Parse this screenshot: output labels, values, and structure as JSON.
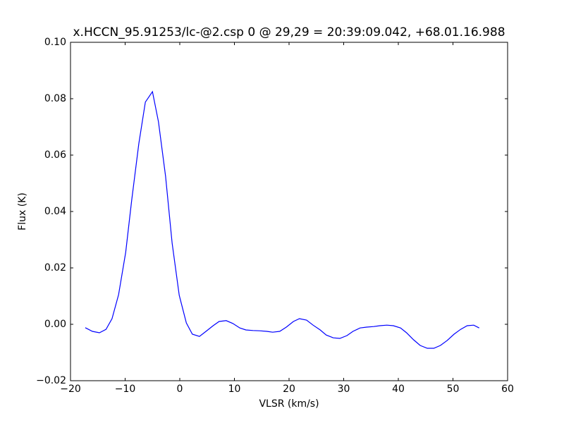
{
  "chart_data": {
    "type": "line",
    "title": "x.HCCN_95.91253/lc-@2.csp 0 @ 29,29 = 20:39:09.042, +68.01.16.988",
    "x_label": "VLSR (km/s)",
    "y_label": "Flux (K)",
    "x": [
      -17.3,
      -16.0,
      -14.7,
      -13.5,
      -12.4,
      -11.2,
      -9.9,
      -8.8,
      -7.5,
      -6.3,
      -5.0,
      -3.9,
      -2.6,
      -1.4,
      -0.1,
      1.2,
      2.3,
      3.6,
      4.8,
      6.1,
      7.2,
      8.5,
      9.7,
      11.0,
      12.1,
      13.4,
      14.6,
      15.9,
      17.0,
      18.3,
      19.5,
      20.8,
      21.9,
      23.2,
      24.4,
      25.7,
      26.8,
      28.1,
      29.3,
      30.6,
      31.7,
      33.0,
      34.2,
      35.5,
      36.6,
      37.9,
      39.1,
      40.4,
      41.5,
      42.8,
      44.0,
      45.3,
      46.5,
      47.7,
      48.9,
      50.2,
      51.4,
      52.6,
      53.8,
      54.8
    ],
    "series": [
      {
        "color": "#0000ff",
        "values": [
          -0.0012,
          -0.0025,
          -0.003,
          -0.0018,
          0.002,
          0.0105,
          0.0255,
          0.044,
          0.064,
          0.0788,
          0.0825,
          0.0718,
          0.0525,
          0.0288,
          0.0103,
          0.0005,
          -0.0035,
          -0.0043,
          -0.0025,
          -0.0005,
          0.001,
          0.0013,
          0.0003,
          -0.0013,
          -0.002,
          -0.0022,
          -0.0023,
          -0.0025,
          -0.0028,
          -0.0025,
          -0.001,
          0.001,
          0.002,
          0.0015,
          -0.0003,
          -0.002,
          -0.0038,
          -0.0048,
          -0.005,
          -0.004,
          -0.0025,
          -0.0013,
          -0.001,
          -0.0008,
          -0.0005,
          -0.0003,
          -0.0005,
          -0.0013,
          -0.003,
          -0.0055,
          -0.0075,
          -0.0085,
          -0.0085,
          -0.0075,
          -0.0058,
          -0.0035,
          -0.0018,
          -0.0005,
          -0.0003,
          -0.0013
        ]
      }
    ],
    "xlim": [
      -20,
      60
    ],
    "xticks": [
      {
        "value": -20,
        "label": "−20"
      },
      {
        "value": -10,
        "label": "−10"
      },
      0,
      10,
      20,
      30,
      40,
      50,
      60
    ],
    "ylim": [
      -0.02,
      0.1
    ],
    "yticks": [
      {
        "value": -0.02,
        "label": "−0.02"
      },
      {
        "value": 0,
        "label": "0.00"
      },
      0.02,
      0.04,
      0.06,
      0.08,
      {
        "value": 0.1,
        "label": "0.10"
      }
    ]
  }
}
